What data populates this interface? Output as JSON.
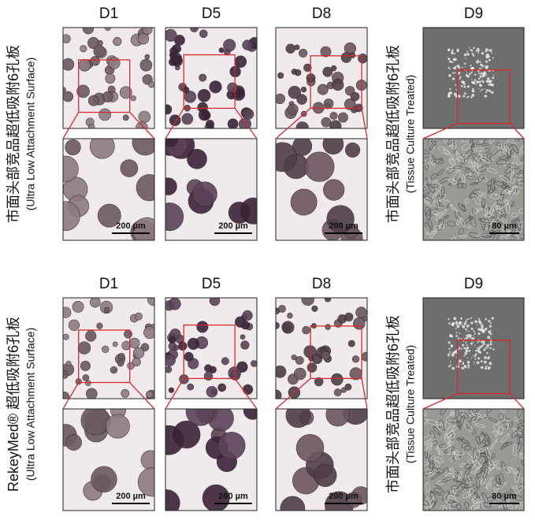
{
  "panels": [
    {
      "label": "市面头部竞品超低吸附6孔板",
      "sublabel": "(Ultra Low Attachment Surface)",
      "right_label": "市面头部竞品超低吸附6孔板",
      "right_sublabel": "(Tissue Culture Treated)",
      "days": [
        "D1",
        "D5",
        "D8",
        "D9"
      ],
      "scale_bars": [
        "200 µm",
        "200 µm",
        "200 µm",
        "80 µm"
      ]
    },
    {
      "label": "RekeyMed® 超低吸附6孔板",
      "sublabel": "(Ultra Low Attachment Surface)",
      "right_label": "市面头部竞品超低吸附6孔板",
      "right_sublabel": "(Tissue Culture Treated)",
      "days": [
        "D1",
        "D5",
        "D8",
        "D9"
      ],
      "scale_bars": [
        "200 µm",
        "200 µm",
        "200 µm",
        "80 µm"
      ]
    }
  ]
}
